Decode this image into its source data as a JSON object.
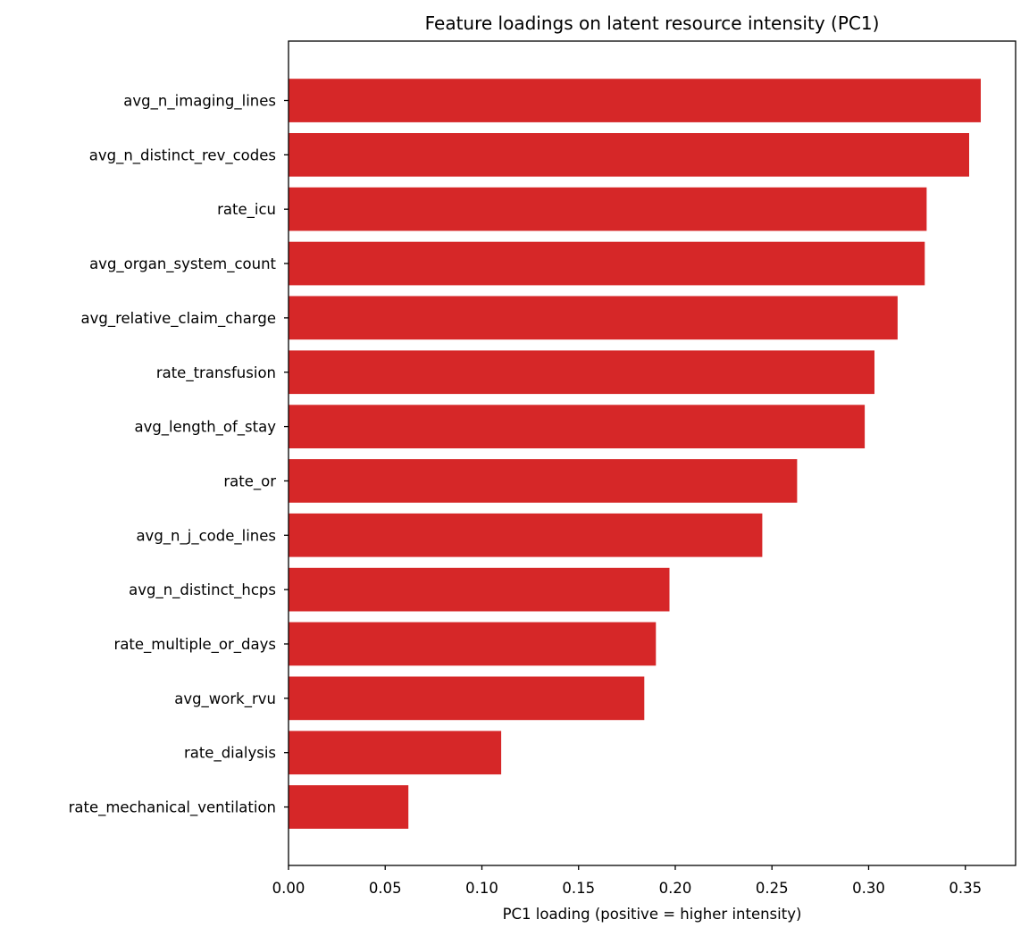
{
  "chart_data": {
    "type": "bar",
    "orientation": "horizontal",
    "title": "Feature loadings on latent resource intensity (PC1)",
    "xlabel": "PC1 loading (positive = higher intensity)",
    "ylabel": "",
    "xlim": [
      0,
      0.376
    ],
    "xticks": [
      "0.00",
      "0.05",
      "0.10",
      "0.15",
      "0.20",
      "0.25",
      "0.30",
      "0.35"
    ],
    "grid": false,
    "legend": null,
    "bar_color": "#d62728",
    "categories": [
      "avg_n_imaging_lines",
      "avg_n_distinct_rev_codes",
      "rate_icu",
      "avg_organ_system_count",
      "avg_relative_claim_charge",
      "rate_transfusion",
      "avg_length_of_stay",
      "rate_or",
      "avg_n_j_code_lines",
      "avg_n_distinct_hcps",
      "rate_multiple_or_days",
      "avg_work_rvu",
      "rate_dialysis",
      "rate_mechanical_ventilation"
    ],
    "values": [
      0.358,
      0.352,
      0.33,
      0.329,
      0.315,
      0.303,
      0.298,
      0.263,
      0.245,
      0.197,
      0.19,
      0.184,
      0.11,
      0.062
    ]
  }
}
